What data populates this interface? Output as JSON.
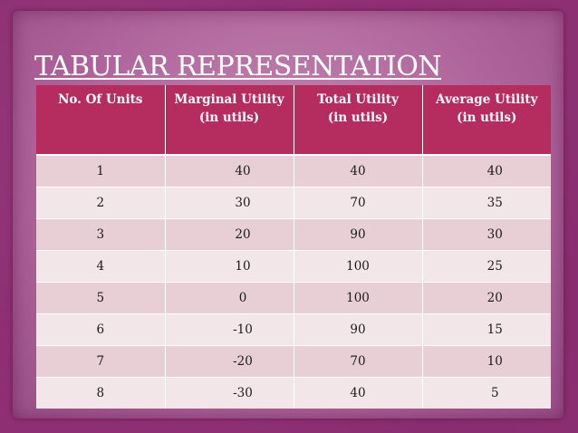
{
  "slide": {
    "title": "TABULAR REPRESENTATION"
  },
  "table": {
    "headers": [
      {
        "line1": "No. Of Units",
        "line2": ""
      },
      {
        "line1": "Marginal Utility",
        "line2": "(in utils)"
      },
      {
        "line1": "Total Utility",
        "line2": "(in utils)"
      },
      {
        "line1": "Average Utility",
        "line2": "(in utils)"
      }
    ],
    "rows": [
      [
        "1",
        "40",
        "40",
        "40"
      ],
      [
        "2",
        "30",
        "70",
        "35"
      ],
      [
        "3",
        "20",
        "90",
        "30"
      ],
      [
        "4",
        "10",
        "100",
        "25"
      ],
      [
        "5",
        "0",
        "100",
        "20"
      ],
      [
        "6",
        "-10",
        "90",
        "15"
      ],
      [
        "7",
        "-20",
        "70",
        "10"
      ],
      [
        "8",
        "-30",
        "40",
        "5"
      ]
    ]
  },
  "colors": {
    "background": "#8e2f74",
    "header": "#b52d5e",
    "row_odd": "#e8cfd5",
    "row_even": "#f3e6e9"
  }
}
